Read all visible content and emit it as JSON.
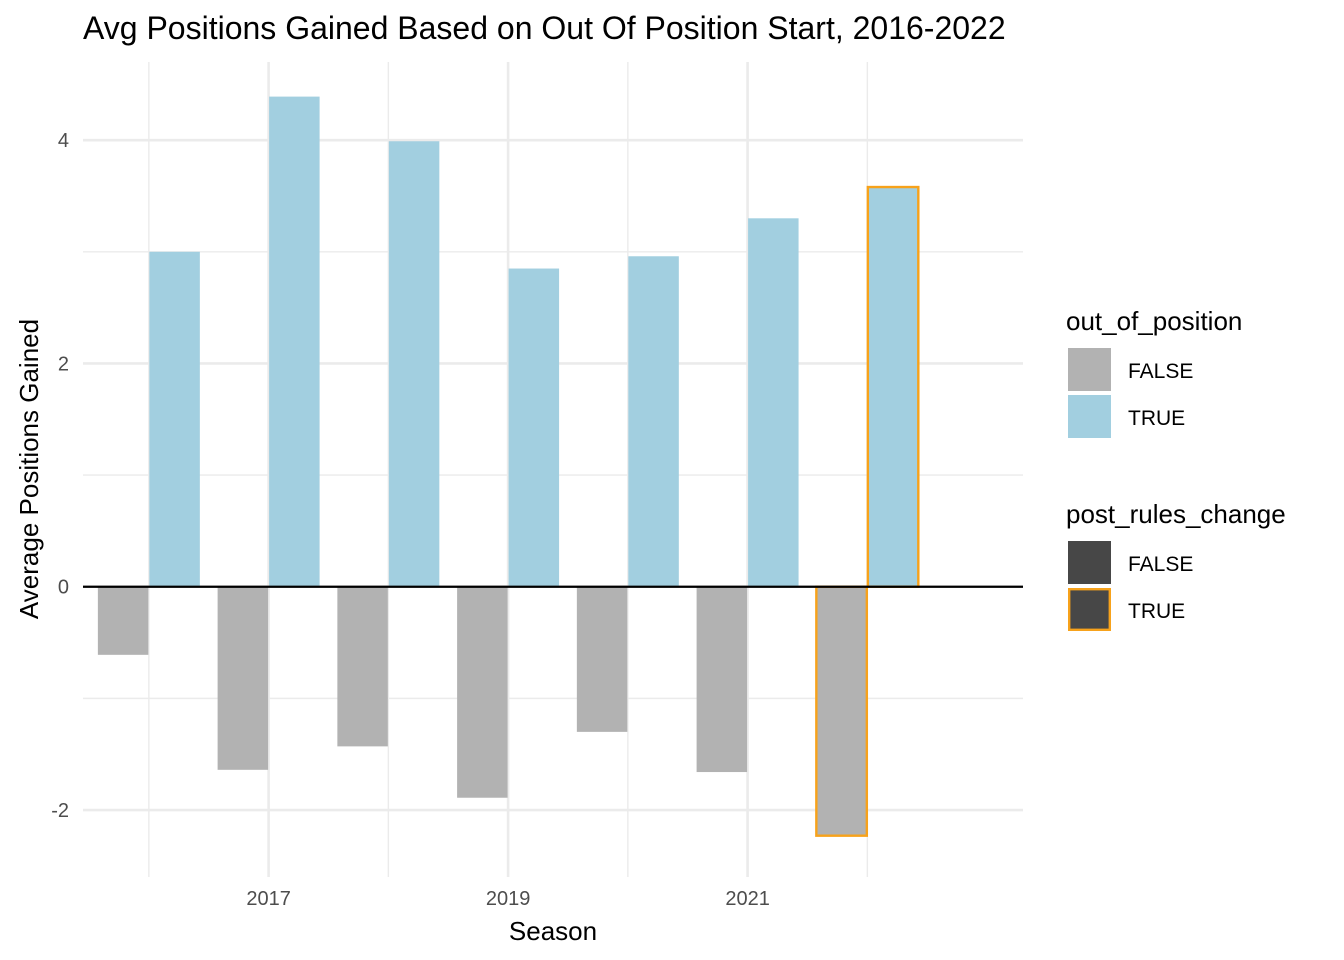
{
  "chart_data": {
    "type": "bar",
    "title": "Avg Positions Gained Based on Out Of Position Start, 2016-2022",
    "xlabel": "Season",
    "ylabel": "Average Positions Gained",
    "x": [
      2016,
      2017,
      2018,
      2019,
      2020,
      2021,
      2022
    ],
    "x_ticks": [
      2017,
      2019,
      2021
    ],
    "x_tick_labels": [
      "2017",
      "2019",
      "2021"
    ],
    "y_ticks": [
      -2,
      0,
      2,
      4
    ],
    "y_tick_labels": [
      "-2",
      "0",
      "2",
      "4"
    ],
    "xlim": [
      2015.45,
      2023.3
    ],
    "ylim": [
      -2.6,
      4.7
    ],
    "grid": true,
    "zero_line": true,
    "series": [
      {
        "name": "FALSE",
        "color": "#b2b2b2",
        "values": [
          -0.61,
          -1.64,
          -1.43,
          -1.89,
          -1.3,
          -1.66,
          -2.23
        ]
      },
      {
        "name": "TRUE",
        "color": "#a2cfe0",
        "values": [
          3.0,
          4.39,
          3.99,
          2.85,
          2.96,
          3.3,
          3.58
        ]
      }
    ],
    "post_rules_change": [
      false,
      false,
      false,
      false,
      false,
      false,
      true
    ],
    "highlight_color": "#f7a21b",
    "legends": [
      {
        "title": "out_of_position",
        "entries": [
          {
            "label": "FALSE",
            "fill": "#b2b2b2",
            "outline": null
          },
          {
            "label": "TRUE",
            "fill": "#a2cfe0",
            "outline": null
          }
        ]
      },
      {
        "title": "post_rules_change",
        "entries": [
          {
            "label": "FALSE",
            "fill": "#474747",
            "outline": null
          },
          {
            "label": "TRUE",
            "fill": "#474747",
            "outline": "#f7a21b"
          }
        ]
      }
    ],
    "legend_position": "right"
  }
}
